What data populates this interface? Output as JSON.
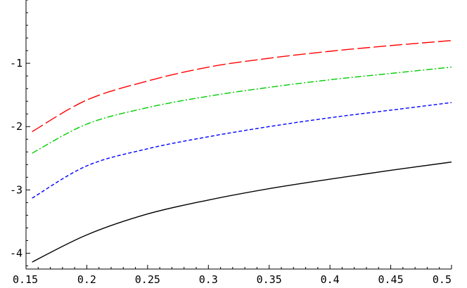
{
  "chart_data": {
    "type": "line",
    "title": "",
    "xlabel": "",
    "ylabel": "",
    "xlim": [
      0.15,
      0.5
    ],
    "ylim": [
      -4.25,
      0
    ],
    "grid": false,
    "legend": "none",
    "x_ticks": [
      0.15,
      0.2,
      0.25,
      0.3,
      0.35,
      0.4,
      0.45,
      0.5
    ],
    "x_tick_labels": [
      "0.15",
      "0.2",
      "0.25",
      "0.3",
      "0.35",
      "0.4",
      "0.45",
      "0.5"
    ],
    "y_ticks": [
      -4,
      -3,
      -2,
      -1
    ],
    "y_tick_labels": [
      "-4",
      "-3",
      "-2",
      "-1"
    ],
    "x": [
      0.155,
      0.2,
      0.25,
      0.3,
      0.35,
      0.4,
      0.45,
      0.5
    ],
    "series": [
      {
        "color": "#ff0000",
        "dash": "long-dash",
        "values": [
          -2.08,
          -1.58,
          -1.28,
          -1.06,
          -0.92,
          -0.81,
          -0.72,
          -0.64
        ]
      },
      {
        "color": "#00cc00",
        "dash": "dash-dot",
        "values": [
          -2.42,
          -1.96,
          -1.7,
          -1.52,
          -1.38,
          -1.26,
          -1.16,
          -1.06
        ]
      },
      {
        "color": "#0000ff",
        "dash": "short-dash",
        "values": [
          -3.13,
          -2.62,
          -2.35,
          -2.16,
          -2.0,
          -1.86,
          -1.74,
          -1.62
        ]
      },
      {
        "color": "#000000",
        "dash": "solid",
        "values": [
          -4.14,
          -3.71,
          -3.38,
          -3.16,
          -2.98,
          -2.83,
          -2.69,
          -2.56
        ]
      }
    ]
  }
}
